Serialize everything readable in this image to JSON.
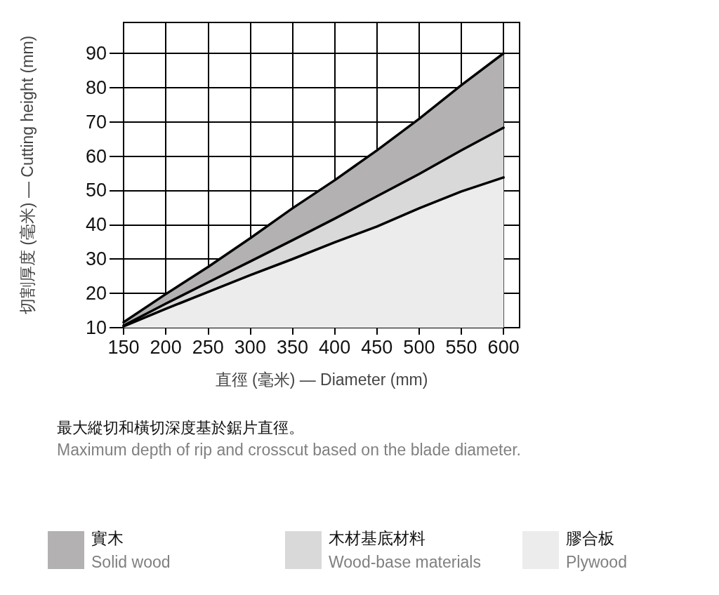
{
  "chart_data": {
    "type": "area",
    "xlabel": "直徑 (毫米) — Diameter (mm)",
    "ylabel": "切割厚度 (毫米) — Cutting height (mm)",
    "annotations": [
      "最大縱切和橫切深度基於鋸片直徑。",
      "Maximum depth of rip and crosscut based on the blade diameter."
    ],
    "x": [
      150,
      200,
      250,
      300,
      350,
      400,
      450,
      500,
      550,
      600
    ],
    "series": [
      {
        "name": "實木\nSolid wood",
        "color": "#b3b1b2",
        "values": [
          11.6,
          19.8,
          27.7,
          36.1,
          44.8,
          53.0,
          61.7,
          70.9,
          80.7,
          90
        ]
      },
      {
        "name": "木材基底材料\nWood-base materials",
        "color": "#d9d9d9",
        "values": [
          10.6,
          17.0,
          23.2,
          29.3,
          35.5,
          41.8,
          48.3,
          54.8,
          61.7,
          68.3
        ]
      },
      {
        "name": "膠合板\nPlywood",
        "color": "#ececec",
        "values": [
          10.4,
          15.5,
          20.4,
          25.3,
          30.0,
          34.9,
          39.5,
          44.8,
          49.7,
          53.8
        ]
      }
    ],
    "xlim": [
      150,
      619
    ],
    "xticks": [
      150,
      200,
      250,
      300,
      350,
      400,
      450,
      500,
      550,
      600
    ],
    "ylim": [
      10,
      99
    ],
    "yticks": [
      10,
      20,
      30,
      40,
      50,
      60,
      70,
      80,
      90
    ],
    "grid": true,
    "legend": "bottom",
    "line_style": "solid"
  }
}
